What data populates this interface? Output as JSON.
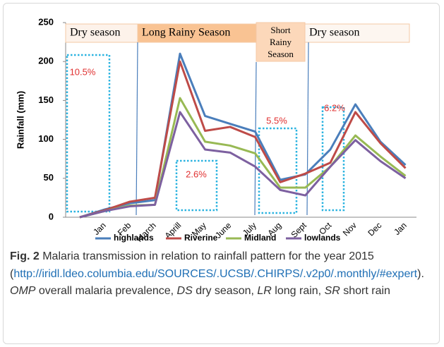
{
  "chart_data": {
    "type": "line",
    "y_label": "Rainfall (mm)",
    "categories": [
      null,
      "Jan",
      "Feb",
      "March",
      "Aprill",
      "May",
      "June",
      "July",
      "Aug",
      "Sept",
      "Oct",
      "Nov",
      "Dec",
      "Jan"
    ],
    "series": [
      {
        "name": "highlands",
        "color": "#4a7ebb",
        "values": [
          0,
          10,
          18,
          22,
          210,
          130,
          120,
          110,
          48,
          55,
          87,
          145,
          97,
          67
        ]
      },
      {
        "name": "Riverine",
        "color": "#be4b48",
        "values": [
          0,
          9,
          20,
          25,
          200,
          111,
          116,
          103,
          45,
          56,
          70,
          135,
          95,
          63
        ]
      },
      {
        "name": "Midland",
        "color": "#98b954",
        "values": [
          0,
          8,
          15,
          16,
          153,
          97,
          92,
          82,
          38,
          38,
          65,
          105,
          78,
          53
        ]
      },
      {
        "name": "lowlands",
        "color": "#7d60a0",
        "values": [
          0,
          8,
          14,
          16,
          135,
          87,
          83,
          65,
          35,
          28,
          65,
          99,
          72,
          50
        ]
      }
    ],
    "ylim": [
      0,
      250
    ],
    "yticks": [
      0,
      50,
      100,
      150,
      200,
      250
    ],
    "seasons": [
      "Dry season",
      "Long Rainy Season",
      "Short Rainy Season",
      "Dry season"
    ],
    "annotations": [
      "10.5%",
      "2.6%",
      "5.5%",
      "6.2%"
    ],
    "legend": "bottom"
  },
  "caption": {
    "label": "Fig. 2",
    "segments": [
      " Malaria transmission in relation to rainfall pattern for the year 2015 (",
      "http://iridl.ldeo.columbia.edu/SOURCES/.UCSB/.CHIRPS/.v2p0/.monthly/#expert",
      "). ",
      "OMP",
      " overall malaria prevalence, ",
      "DS",
      " dry season, ",
      "LR",
      " long rain, ",
      "SR",
      " short rain"
    ]
  }
}
